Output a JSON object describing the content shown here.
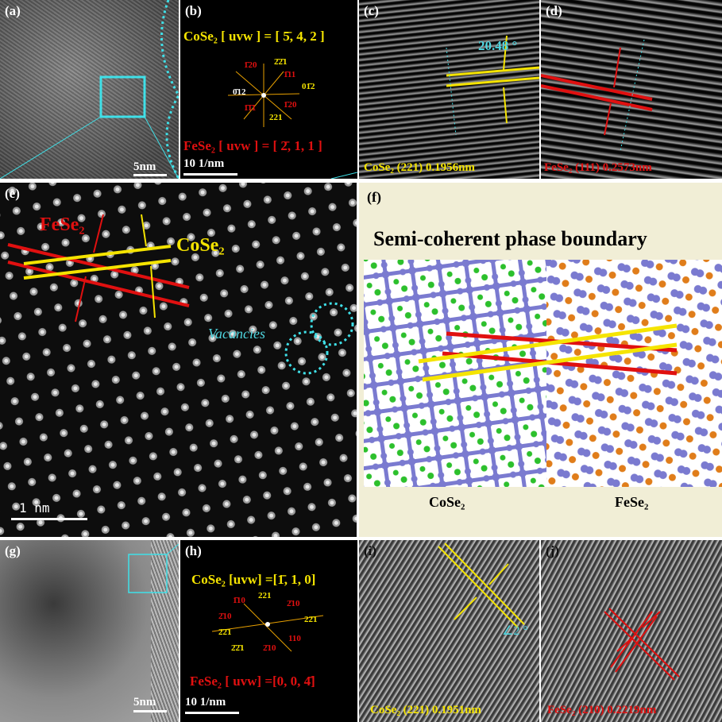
{
  "panels": {
    "a": {
      "label": "(a)",
      "scale_bar": "5nm"
    },
    "b": {
      "label": "(b)",
      "zone_1": "CoSe₂ [ uvw ] = [ 5̄, 4, 2 ]",
      "zone_2": "FeSe₂ [ uvw ] = [ 2̄, 1, 1 ]",
      "scale_bar": "10 1/nm",
      "spots": [
        "1̄20",
        "2̄2̄1",
        "1̄11",
        "01̄2",
        "0̄12",
        "1̄1̄1",
        "1̄20",
        "221"
      ]
    },
    "c": {
      "label": "(c)",
      "angle": "20.48 °",
      "caption": "CoSe₂ (221) 0.1956nm"
    },
    "d": {
      "label": "(d)",
      "caption": "FeSe₂ (111) 0.2573nm"
    },
    "e": {
      "label": "(e)",
      "phase_1": "FeSe₂",
      "phase_2": "CoSe₂",
      "note": "Vacancies",
      "scale_bar": "1 nm"
    },
    "f": {
      "label": "(f)",
      "title": "Semi-coherent phase boundary",
      "phase_1": "CoSe₂",
      "phase_2": "FeSe₂"
    },
    "g": {
      "label": "(g)",
      "scale_bar": "5nm"
    },
    "h": {
      "label": "(h)",
      "zone_1": "CoSe₂ [uvw] =[1̄, 1, 0]",
      "zone_2": "FeSe₂ [ uvw] =[0, 0, 4̄]",
      "scale_bar": "10 1/nm",
      "spots": [
        "1̄10",
        "221",
        "2̄10",
        "2̄10",
        "22̄1",
        "2̄2̄1",
        "2̄2̄1",
        "2̄10",
        "110"
      ]
    },
    "i": {
      "label": "(i)",
      "angle": "∠2 °",
      "caption": "CoSe₂ (221) 0.1951nm"
    },
    "j": {
      "label": "(j)",
      "caption": "FeSe₂ (210) 0.2219nm"
    }
  }
}
